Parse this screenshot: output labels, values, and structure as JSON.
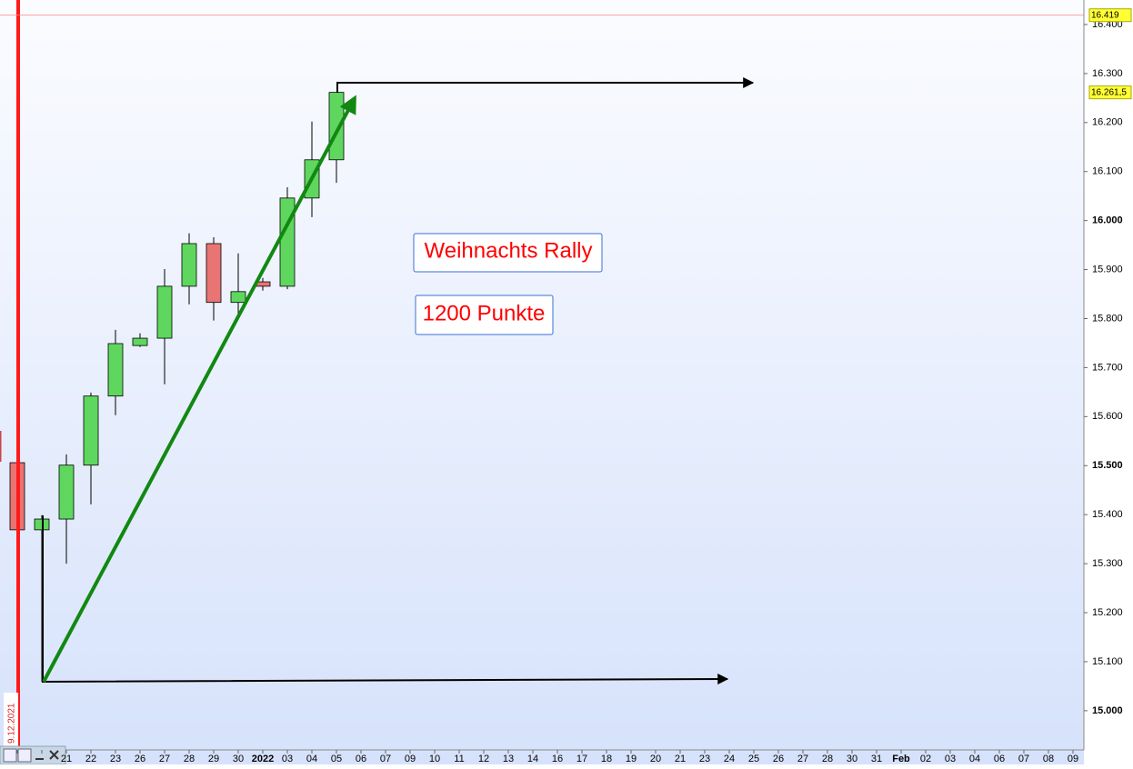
{
  "chart_data": {
    "type": "candlestick",
    "categories": [
      null,
      null,
      "21",
      "22",
      "23",
      "26",
      "27",
      "28",
      "29",
      "30",
      "2022",
      "03",
      "04",
      "05",
      "06",
      "07",
      "09",
      "10",
      "11",
      "12",
      "13",
      "14",
      "16",
      "17",
      "18",
      "19",
      "20",
      "21",
      "23",
      "24",
      "25",
      "26",
      "27",
      "28",
      "30",
      "31",
      "Feb",
      "02",
      "03",
      "04",
      "06",
      "07",
      "08",
      "09"
    ],
    "open": [
      15506,
      15369,
      15391,
      15501,
      15642,
      15745,
      15760,
      15866,
      15953,
      15833,
      15875,
      15866,
      16046,
      16124,
      null,
      null,
      null,
      null,
      null,
      null,
      null,
      null,
      null,
      null,
      null,
      null,
      null,
      null,
      null,
      null,
      null,
      null,
      null,
      null,
      null,
      null,
      null,
      null,
      null,
      null,
      null,
      null,
      null,
      null
    ],
    "high": [
      15506,
      15399,
      15523,
      15649,
      15777,
      15770,
      15901,
      15974,
      15966,
      15933,
      15883,
      16068,
      16202,
      16261.5,
      null,
      null,
      null,
      null,
      null,
      null,
      null,
      null,
      null,
      null,
      null,
      null,
      null,
      null,
      null,
      null,
      null,
      null,
      null,
      null,
      null,
      null,
      null,
      null,
      null,
      null,
      null,
      null,
      null,
      null
    ],
    "low": [
      15369,
      15059,
      15300,
      15421,
      15603,
      15742,
      15666,
      15829,
      15796,
      15810,
      15857,
      15860,
      16007,
      16077,
      null,
      null,
      null,
      null,
      null,
      null,
      null,
      null,
      null,
      null,
      null,
      null,
      null,
      null,
      null,
      null,
      null,
      null,
      null,
      null,
      null,
      null,
      null,
      null,
      null,
      null,
      null,
      null,
      null,
      null
    ],
    "close": [
      15369,
      15391,
      15501,
      15642,
      15749,
      15760,
      15866,
      15953,
      15833,
      15855,
      15866,
      16046,
      16124,
      16261.5,
      null,
      null,
      null,
      null,
      null,
      null,
      null,
      null,
      null,
      null,
      null,
      null,
      null,
      null,
      null,
      null,
      null,
      null,
      null,
      null,
      null,
      null,
      null,
      null,
      null,
      null,
      null,
      null,
      null,
      null
    ],
    "up_color": "#5fd75f",
    "down_color": "#e87474",
    "ylim": [
      14920,
      16450
    ],
    "yticks": [
      {
        "value": 15000,
        "label": "15.000"
      },
      {
        "value": 15100,
        "label": "15.100"
      },
      {
        "value": 15200,
        "label": "15.200"
      },
      {
        "value": 15300,
        "label": "15.300"
      },
      {
        "value": 15400,
        "label": "15.400"
      },
      {
        "value": 15500,
        "label": "15.500"
      },
      {
        "value": 15600,
        "label": "15.600"
      },
      {
        "value": 15700,
        "label": "15.700"
      },
      {
        "value": 15800,
        "label": "15.800"
      },
      {
        "value": 15900,
        "label": "15.900"
      },
      {
        "value": 16000,
        "label": "16.000"
      },
      {
        "value": 16100,
        "label": "16.100"
      },
      {
        "value": 16200,
        "label": "16.200"
      },
      {
        "value": 16300,
        "label": "16.300"
      },
      {
        "value": 16400,
        "label": "16.400"
      }
    ],
    "price_labels": [
      {
        "value": 16419,
        "label": "16.419"
      },
      {
        "value": 16261.5,
        "label": "16.261,5"
      }
    ],
    "date_marker": "9.12.2021",
    "annotations": [
      "Weihnachts Rally",
      "1200 Punkte"
    ]
  }
}
